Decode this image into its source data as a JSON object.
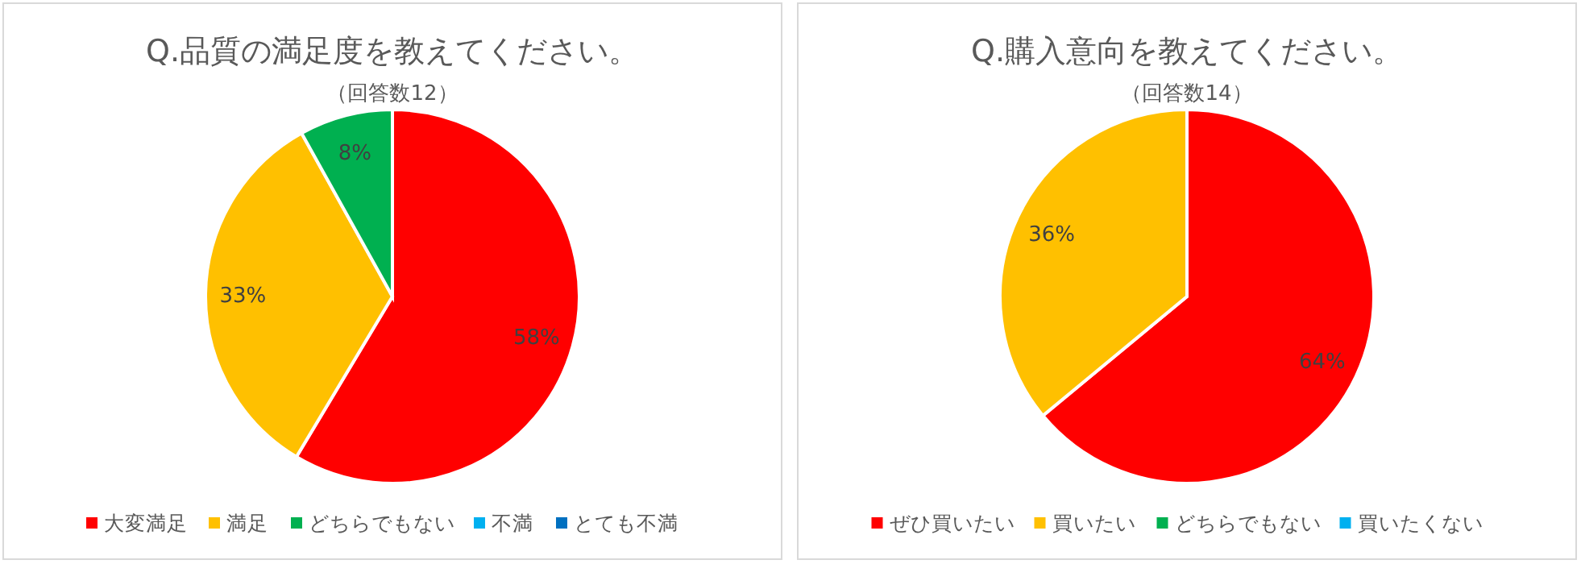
{
  "chart_data": [
    {
      "type": "pie",
      "title": "Q.品質の満足度を教えてください。",
      "subtitle": "（回答数12）",
      "categories": [
        "大変満足",
        "満足",
        "どちらでもない",
        "不満",
        "とても不満"
      ],
      "values": [
        58,
        33,
        8,
        0,
        0
      ],
      "value_labels": [
        "58%",
        "33%",
        "8%",
        null,
        null
      ],
      "colors": [
        "#ff0000",
        "#ffc000",
        "#00b050",
        "#00b0f0",
        "#0070c0"
      ],
      "legend": "bottom"
    },
    {
      "type": "pie",
      "title": "Q.購入意向を教えてください。",
      "subtitle": "（回答数14）",
      "categories": [
        "ぜひ買いたい",
        "買いたい",
        "どちらでもない",
        "買いたくない"
      ],
      "values": [
        64,
        36,
        0,
        0
      ],
      "value_labels": [
        "64%",
        "36%",
        null,
        null
      ],
      "colors": [
        "#ff0000",
        "#ffc000",
        "#00b050",
        "#00b0f0"
      ],
      "legend": "bottom"
    }
  ]
}
